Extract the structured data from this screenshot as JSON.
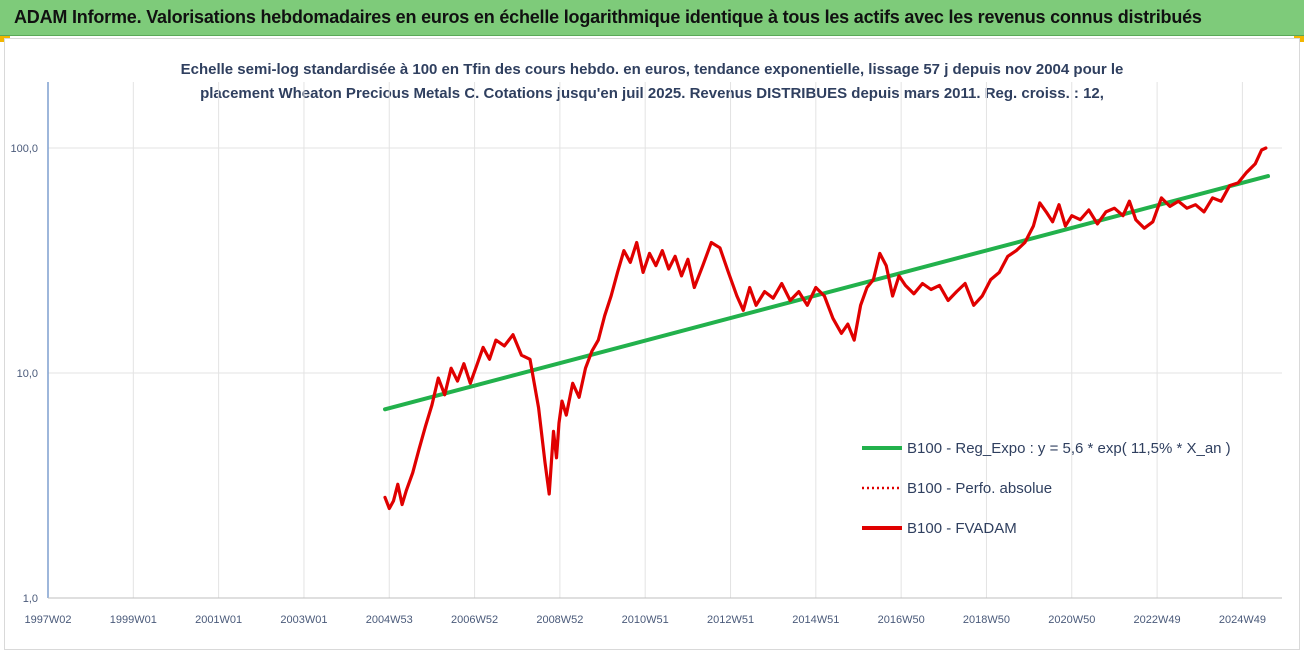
{
  "banner": {
    "title": "ADAM Informe. Valorisations hebdomadaires en euros en échelle logarithmique identique à tous les actifs avec les revenus connus distribués"
  },
  "chart_data": {
    "type": "line",
    "title_line1": "Echelle semi-log standardisée à 100 en Tfin des cours hebdo. en euros, tendance exponentielle, lissage 57 j depuis nov 2004 pour le",
    "title_line2": "placement Wheaton Precious Metals C. Cotations jusqu'en juil 2025. Revenus DISTRIBUES depuis mars 2011. Reg. croiss. : 12,",
    "yscale": "log",
    "ylim": [
      1,
      100
    ],
    "yticks": [
      {
        "value": 1,
        "label": "1,0"
      },
      {
        "value": 10,
        "label": "10,0"
      },
      {
        "value": 100,
        "label": "100,0"
      }
    ],
    "xlim": [
      1997.0,
      2025.6
    ],
    "xticks": [
      {
        "x": 1997.0,
        "label": "1997W02"
      },
      {
        "x": 1999.0,
        "label": "1999W01"
      },
      {
        "x": 2001.0,
        "label": "2001W01"
      },
      {
        "x": 2003.0,
        "label": "2003W01"
      },
      {
        "x": 2005.0,
        "label": "2004W53"
      },
      {
        "x": 2007.0,
        "label": "2006W52"
      },
      {
        "x": 2009.0,
        "label": "2008W52"
      },
      {
        "x": 2011.0,
        "label": "2010W51"
      },
      {
        "x": 2013.0,
        "label": "2012W51"
      },
      {
        "x": 2015.0,
        "label": "2014W51"
      },
      {
        "x": 2017.0,
        "label": "2016W50"
      },
      {
        "x": 2019.0,
        "label": "2018W50"
      },
      {
        "x": 2021.0,
        "label": "2020W50"
      },
      {
        "x": 2023.0,
        "label": "2022W49"
      },
      {
        "x": 2025.0,
        "label": "2024W49"
      }
    ],
    "grid": "vertical and horizontal",
    "legend_position": "lower-right",
    "series": [
      {
        "name": "B100 - Reg_Expo : y = 5,6 * exp( 11,5% *  X_an )",
        "color": "#22b14c",
        "style": "solid",
        "x": [
          2004.9,
          2025.6
        ],
        "y": [
          6.9,
          75.0
        ]
      },
      {
        "name": "B100 - Perfo. absolue",
        "color": "#e00000",
        "style": "dotted",
        "x": [],
        "y": []
      },
      {
        "name": "B100 - FVADAM",
        "color": "#e00000",
        "style": "solid",
        "x": [
          2004.9,
          2005.0,
          2005.1,
          2005.2,
          2005.3,
          2005.4,
          2005.55,
          2005.7,
          2005.85,
          2006.0,
          2006.15,
          2006.3,
          2006.45,
          2006.6,
          2006.75,
          2006.9,
          2007.05,
          2007.2,
          2007.35,
          2007.5,
          2007.7,
          2007.9,
          2008.1,
          2008.3,
          2008.5,
          2008.65,
          2008.75,
          2008.85,
          2008.92,
          2008.98,
          2009.05,
          2009.15,
          2009.3,
          2009.45,
          2009.6,
          2009.75,
          2009.9,
          2010.05,
          2010.2,
          2010.35,
          2010.5,
          2010.65,
          2010.8,
          2010.95,
          2011.1,
          2011.25,
          2011.4,
          2011.55,
          2011.7,
          2011.85,
          2012.0,
          2012.15,
          2012.35,
          2012.55,
          2012.75,
          2012.95,
          2013.15,
          2013.3,
          2013.45,
          2013.6,
          2013.8,
          2014.0,
          2014.2,
          2014.4,
          2014.6,
          2014.8,
          2015.0,
          2015.2,
          2015.4,
          2015.6,
          2015.75,
          2015.9,
          2016.05,
          2016.2,
          2016.35,
          2016.5,
          2016.65,
          2016.8,
          2016.95,
          2017.1,
          2017.3,
          2017.5,
          2017.7,
          2017.9,
          2018.1,
          2018.3,
          2018.5,
          2018.7,
          2018.9,
          2019.1,
          2019.3,
          2019.5,
          2019.7,
          2019.9,
          2020.1,
          2020.25,
          2020.4,
          2020.55,
          2020.7,
          2020.85,
          2021.0,
          2021.2,
          2021.4,
          2021.6,
          2021.8,
          2022.0,
          2022.2,
          2022.35,
          2022.5,
          2022.7,
          2022.9,
          2023.1,
          2023.3,
          2023.5,
          2023.7,
          2023.9,
          2024.1,
          2024.3,
          2024.5,
          2024.7,
          2024.9,
          2025.1,
          2025.3,
          2025.45,
          2025.55
        ],
        "y": [
          2.8,
          2.5,
          2.7,
          3.2,
          2.6,
          3.0,
          3.6,
          4.6,
          5.8,
          7.2,
          9.5,
          8.0,
          10.5,
          9.2,
          11.0,
          9.0,
          10.8,
          13.0,
          11.5,
          14.0,
          13.2,
          14.8,
          12.0,
          11.5,
          7.0,
          4.0,
          2.9,
          5.5,
          4.2,
          6.0,
          7.5,
          6.5,
          9.0,
          7.8,
          10.5,
          12.5,
          14.0,
          18.0,
          22.0,
          28.0,
          35.0,
          31.0,
          38.0,
          28.0,
          34.0,
          30.0,
          35.0,
          29.0,
          33.0,
          27.0,
          32.0,
          24.0,
          30.0,
          38.0,
          36.0,
          28.0,
          22.0,
          19.0,
          24.0,
          20.0,
          23.0,
          21.5,
          25.0,
          21.0,
          23.0,
          20.0,
          24.0,
          22.0,
          17.5,
          15.0,
          16.5,
          14.0,
          20.0,
          24.0,
          26.0,
          34.0,
          30.0,
          22.0,
          27.0,
          24.5,
          22.5,
          25.0,
          23.5,
          24.5,
          21.0,
          23.0,
          25.0,
          20.0,
          22.0,
          26.0,
          28.0,
          33.0,
          35.0,
          38.0,
          45.0,
          57.0,
          52.0,
          47.0,
          56.0,
          45.0,
          50.0,
          48.0,
          53.0,
          46.0,
          52.0,
          54.0,
          50.0,
          58.0,
          48.0,
          44.0,
          47.0,
          60.0,
          55.0,
          58.0,
          54.0,
          56.0,
          52.0,
          60.0,
          58.0,
          68.0,
          70.0,
          78.0,
          85.0,
          98.0,
          100.0
        ]
      }
    ]
  }
}
